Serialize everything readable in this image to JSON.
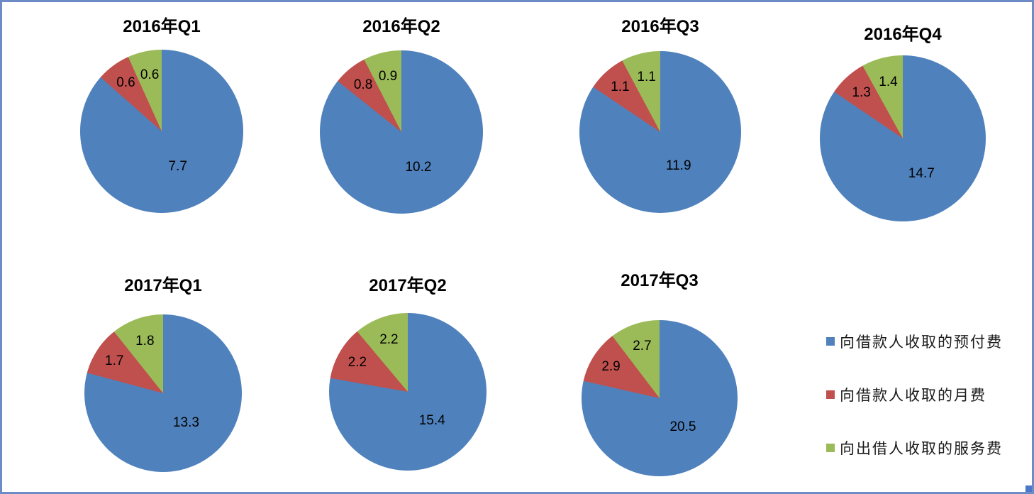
{
  "page": {
    "background": "#FFFFFF",
    "frame_border_color": "#6C8BC7",
    "resize_handle_color": "#4B79C8"
  },
  "legend": {
    "position": "right-bottom",
    "items": [
      {
        "label": "向借款人收取的预付费",
        "color": "#4F81BD"
      },
      {
        "label": "向借款人收取的月费",
        "color": "#C0504D"
      },
      {
        "label": "向出借人收取的服务费",
        "color": "#9BBB59"
      }
    ]
  },
  "chart_data": {
    "type": "pie",
    "layout": "small-multiples, 2 rows (4 + 3), legend right-bottom",
    "categories": [
      "向借款人收取的预付费",
      "向借款人收取的月费",
      "向出借人收取的服务费"
    ],
    "colors": [
      "#4F81BD",
      "#C0504D",
      "#9BBB59"
    ],
    "start_angle": "12 o'clock, clockwise",
    "charts": [
      {
        "title": "2016年Q1",
        "values": [
          7.7,
          0.6,
          0.6
        ]
      },
      {
        "title": "2016年Q2",
        "values": [
          10.2,
          0.8,
          0.9
        ]
      },
      {
        "title": "2016年Q3",
        "values": [
          11.9,
          1.1,
          1.1
        ]
      },
      {
        "title": "2016年Q4",
        "values": [
          14.7,
          1.3,
          1.4
        ]
      },
      {
        "title": "2017年Q1",
        "values": [
          13.3,
          1.7,
          1.8
        ]
      },
      {
        "title": "2017年Q2",
        "values": [
          15.4,
          2.2,
          2.2
        ]
      },
      {
        "title": "2017年Q3",
        "values": [
          20.5,
          2.9,
          2.7
        ]
      }
    ]
  }
}
